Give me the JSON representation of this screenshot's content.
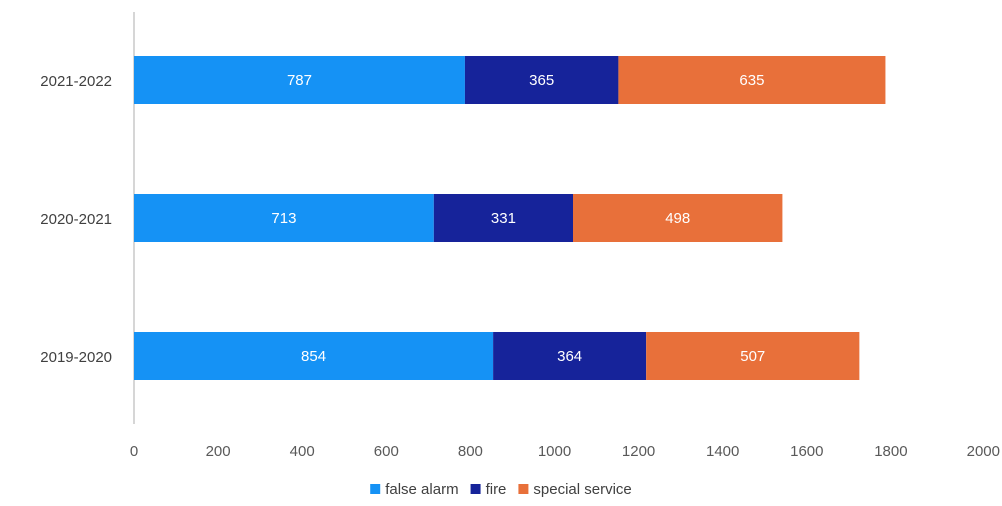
{
  "chart_data": {
    "type": "bar",
    "orientation": "horizontal",
    "stacked": true,
    "categories": [
      "2021-2022",
      "2020-2021",
      "2019-2020"
    ],
    "series": [
      {
        "name": "false alarm",
        "color": "#1592f5",
        "values": [
          787,
          713,
          854
        ]
      },
      {
        "name": "fire",
        "color": "#16239a",
        "values": [
          365,
          331,
          364
        ]
      },
      {
        "name": "special service",
        "color": "#e8703a",
        "values": [
          635,
          498,
          507
        ]
      }
    ],
    "xlim": [
      0,
      2000
    ],
    "xticks": [
      0,
      200,
      400,
      600,
      800,
      1000,
      1200,
      1400,
      1600,
      1800,
      2000
    ],
    "grid": false,
    "legend_position": "bottom",
    "data_labels": true,
    "title": "",
    "xlabel": "",
    "ylabel": ""
  }
}
